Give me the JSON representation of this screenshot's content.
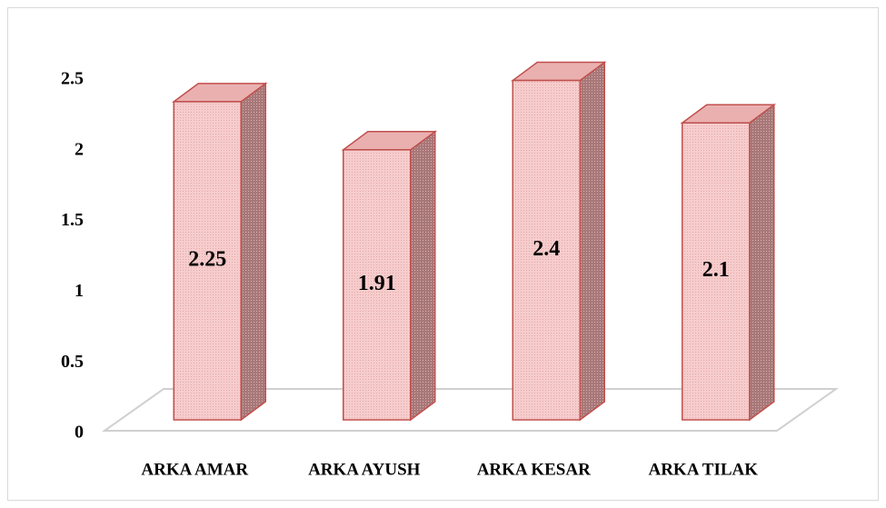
{
  "chart_data": {
    "type": "bar3d",
    "categories": [
      "ARKA AMAR",
      "ARKA AYUSH",
      "ARKA KESAR",
      "ARKA TILAK"
    ],
    "values": [
      2.25,
      1.91,
      2.4,
      2.1
    ],
    "color": "#f4c6c6",
    "edge_color": "#c0504d",
    "ylim": [
      0,
      2.5
    ],
    "yticks": [
      0,
      0.5,
      1,
      1.5,
      2,
      2.5
    ]
  }
}
